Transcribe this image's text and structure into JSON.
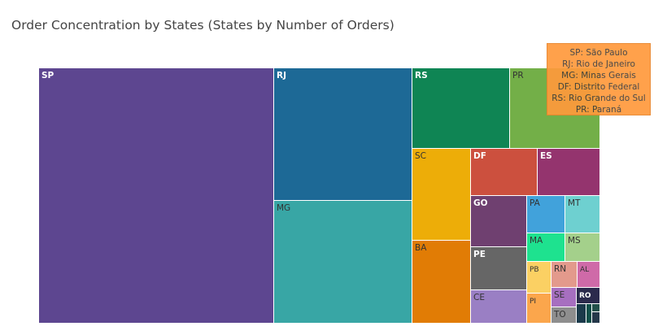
{
  "chart_data": {
    "type": "treemap",
    "title": "Order Concentration by States (States by Number of Orders)",
    "tiles": [
      {
        "label": "SP",
        "color": "#5d4690"
      },
      {
        "label": "RJ",
        "color": "#1d6996"
      },
      {
        "label": "MG",
        "color": "#38a6a5"
      },
      {
        "label": "RS",
        "color": "#0f8554"
      },
      {
        "label": "PR",
        "color": "#73af48"
      },
      {
        "label": "SC",
        "color": "#edad08"
      },
      {
        "label": "BA",
        "color": "#e17c05"
      },
      {
        "label": "DF",
        "color": "#cc503e"
      },
      {
        "label": "ES",
        "color": "#94346e"
      },
      {
        "label": "GO",
        "color": "#6f4070"
      },
      {
        "label": "PE",
        "color": "#666666"
      },
      {
        "label": "CE",
        "color": "#9a7fc4"
      },
      {
        "label": "PA",
        "color": "#41a2db"
      },
      {
        "label": "MT",
        "color": "#6ed0d0"
      },
      {
        "label": "MA",
        "color": "#1ee28f"
      },
      {
        "label": "MS",
        "color": "#a4d08b"
      },
      {
        "label": "PB",
        "color": "#fbd063"
      },
      {
        "label": "PI",
        "color": "#fba64c"
      },
      {
        "label": "RN",
        "color": "#e39a8c"
      },
      {
        "label": "AL",
        "color": "#cf6aa8"
      },
      {
        "label": "SE",
        "color": "#a76fc0"
      },
      {
        "label": "TO",
        "color": "#8e8e8e"
      },
      {
        "label": "RO",
        "color": "#2b2a4c"
      },
      {
        "label": "",
        "color": "#1b3a4b"
      },
      {
        "label": "",
        "color": "#0e4f49"
      },
      {
        "label": "",
        "color": "#23504a"
      },
      {
        "label": "",
        "color": "#25384a"
      }
    ],
    "legend": [
      "SP:  São Paulo",
      "RJ: Rio de Janeiro",
      "MG: Minas Gerais",
      "DF: Distrito Federal",
      "RS: Rio Grande do Sul",
      "PR: Paraná"
    ]
  }
}
